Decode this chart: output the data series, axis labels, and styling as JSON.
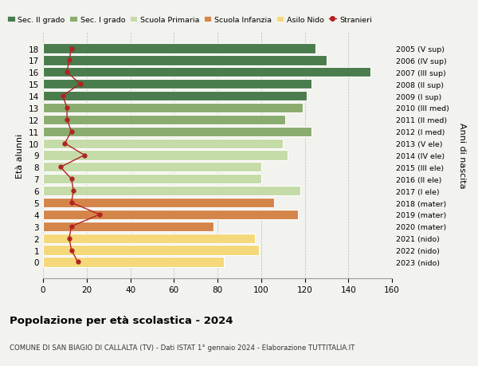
{
  "ages": [
    18,
    17,
    16,
    15,
    14,
    13,
    12,
    11,
    10,
    9,
    8,
    7,
    6,
    5,
    4,
    3,
    2,
    1,
    0
  ],
  "bar_values": [
    125,
    130,
    150,
    123,
    121,
    119,
    111,
    123,
    110,
    112,
    100,
    100,
    118,
    106,
    117,
    78,
    97,
    99,
    83
  ],
  "stranieri": [
    13,
    12,
    11,
    17,
    9,
    11,
    11,
    13,
    10,
    19,
    8,
    13,
    14,
    13,
    26,
    13,
    12,
    13,
    16
  ],
  "bar_colors": [
    "#4a7c4e",
    "#4a7c4e",
    "#4a7c4e",
    "#4a7c4e",
    "#4a7c4e",
    "#8aac6e",
    "#8aac6e",
    "#8aac6e",
    "#c5dba8",
    "#c5dba8",
    "#c5dba8",
    "#c5dba8",
    "#c5dba8",
    "#d4854a",
    "#d4854a",
    "#d4854a",
    "#f5d87a",
    "#f5d87a",
    "#f5d87a"
  ],
  "right_labels": [
    "2005 (V sup)",
    "2006 (IV sup)",
    "2007 (III sup)",
    "2008 (II sup)",
    "2009 (I sup)",
    "2010 (III med)",
    "2011 (II med)",
    "2012 (I med)",
    "2013 (V ele)",
    "2014 (IV ele)",
    "2015 (III ele)",
    "2016 (II ele)",
    "2017 (I ele)",
    "2018 (mater)",
    "2019 (mater)",
    "2020 (mater)",
    "2021 (nido)",
    "2022 (nido)",
    "2023 (nido)"
  ],
  "legend_labels": [
    "Sec. II grado",
    "Sec. I grado",
    "Scuola Primaria",
    "Scuola Infanzia",
    "Asilo Nido",
    "Stranieri"
  ],
  "legend_colors": [
    "#4a7c4e",
    "#8aac6e",
    "#c5dba8",
    "#d4854a",
    "#f5d87a",
    "#b22222"
  ],
  "ylabel": "Età alunni",
  "right_ylabel": "Anni di nascita",
  "title": "Popolazione per età scolastica - 2024",
  "subtitle": "COMUNE DI SAN BIAGIO DI CALLALTA (TV) - Dati ISTAT 1° gennaio 2024 - Elaborazione TUTTITALIA.IT",
  "xlim": [
    0,
    160
  ],
  "xticks": [
    0,
    20,
    40,
    60,
    80,
    100,
    120,
    140,
    160
  ],
  "bg_color": "#f2f2ee",
  "bar_height": 0.82
}
